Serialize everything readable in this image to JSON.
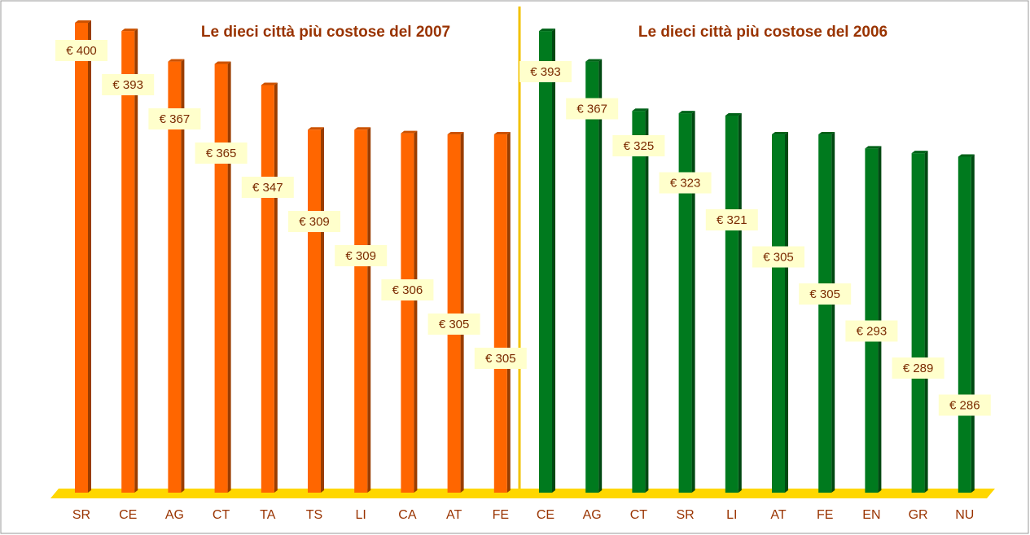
{
  "chart_data": [
    {
      "type": "bar",
      "title": "Le dieci città più costose del 2007",
      "categories": [
        "SR",
        "CE",
        "AG",
        "CT",
        "TA",
        "TS",
        "LI",
        "CA",
        "AT",
        "FE"
      ],
      "values": [
        400,
        393,
        367,
        365,
        347,
        309,
        309,
        306,
        305,
        305
      ],
      "value_labels": [
        "€ 400",
        "€ 393",
        "€ 367",
        "€ 365",
        "€ 347",
        "€ 309",
        "€ 309",
        "€ 306",
        "€ 305",
        "€ 305"
      ],
      "color": "#ff6600",
      "ylim": [
        0,
        400
      ]
    },
    {
      "type": "bar",
      "title": "Le dieci città più costose del 2006",
      "categories": [
        "CE",
        "AG",
        "CT",
        "SR",
        "LI",
        "AT",
        "FE",
        "EN",
        "GR",
        "NU"
      ],
      "values": [
        393,
        367,
        325,
        323,
        321,
        305,
        305,
        293,
        289,
        286
      ],
      "value_labels": [
        "€ 393",
        "€ 367",
        "€ 325",
        "€ 323",
        "€ 321",
        "€ 305",
        "€ 305",
        "€ 293",
        "€ 289",
        "€ 286"
      ],
      "color": "#007a1e",
      "ylim": [
        0,
        400
      ]
    }
  ]
}
